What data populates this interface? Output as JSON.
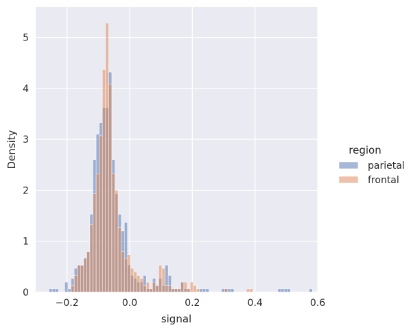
{
  "chart_data": {
    "type": "histogram",
    "xlabel": "signal",
    "ylabel": "Density",
    "xlim": [
      -0.3,
      0.6
    ],
    "ylim": [
      0,
      5.6
    ],
    "xticks": [
      -0.2,
      0.0,
      0.2,
      0.4,
      0.6
    ],
    "xtick_labels": [
      "−0.2",
      "0.0",
      "0.2",
      "0.4",
      "0.6"
    ],
    "yticks": [
      0,
      1,
      2,
      3,
      4,
      5
    ],
    "ytick_labels": [
      "0",
      "1",
      "2",
      "3",
      "4",
      "5"
    ],
    "grid": true,
    "bin_start": -0.2571,
    "bin_width": 0.01,
    "legend": {
      "title": "region",
      "placement": "right",
      "entries": [
        {
          "label": "parietal",
          "color": "#4c72b0"
        },
        {
          "label": "frontal",
          "color": "#dd8452"
        }
      ]
    },
    "series": [
      {
        "name": "parietal",
        "color": "#4c72b0",
        "values": [
          0.07,
          0.07,
          0.07,
          0,
          0,
          0.2,
          0.07,
          0.27,
          0.47,
          0.53,
          0.53,
          0.67,
          0.8,
          1.53,
          2.6,
          3.1,
          3.33,
          3.62,
          3.62,
          4.32,
          2.6,
          1.93,
          1.53,
          1.2,
          1.37,
          0.53,
          0.33,
          0.27,
          0.2,
          0.2,
          0.33,
          0.07,
          0.07,
          0.27,
          0.13,
          0.27,
          0.13,
          0.53,
          0.33,
          0.07,
          0.07,
          0.07,
          0.2,
          0.07,
          0.07,
          0,
          0,
          0,
          0.07,
          0.07,
          0.07,
          0,
          0,
          0,
          0,
          0.07,
          0.07,
          0.07,
          0.07,
          0,
          0,
          0,
          0,
          0,
          0,
          0,
          0,
          0,
          0,
          0,
          0,
          0,
          0,
          0.07,
          0.07,
          0.07,
          0.07,
          0,
          0,
          0,
          0,
          0,
          0,
          0.07
        ]
      },
      {
        "name": "frontal",
        "color": "#dd8452",
        "values": [
          0,
          0,
          0,
          0,
          0,
          0,
          0,
          0.13,
          0.33,
          0.53,
          0.53,
          0.67,
          0.8,
          1.33,
          1.93,
          2.33,
          3.07,
          4.37,
          5.28,
          4.08,
          2.33,
          2.0,
          1.27,
          0.8,
          0.67,
          0.73,
          0.47,
          0.4,
          0.33,
          0.27,
          0.13,
          0.2,
          0.07,
          0.2,
          0.13,
          0.53,
          0.47,
          0.13,
          0.13,
          0.07,
          0.07,
          0.07,
          0.2,
          0.2,
          0.07,
          0.2,
          0.13,
          0.07,
          0,
          0,
          0,
          0,
          0,
          0,
          0,
          0,
          0.07,
          0,
          0,
          0,
          0,
          0,
          0,
          0.07,
          0.07,
          0,
          0,
          0,
          0,
          0,
          0,
          0,
          0,
          0,
          0,
          0,
          0,
          0,
          0,
          0,
          0,
          0,
          0,
          0
        ]
      }
    ]
  },
  "colors": {
    "plot_background": "#eaeaf2",
    "grid": "#ffffff",
    "bar_edge": "#ffffff"
  }
}
